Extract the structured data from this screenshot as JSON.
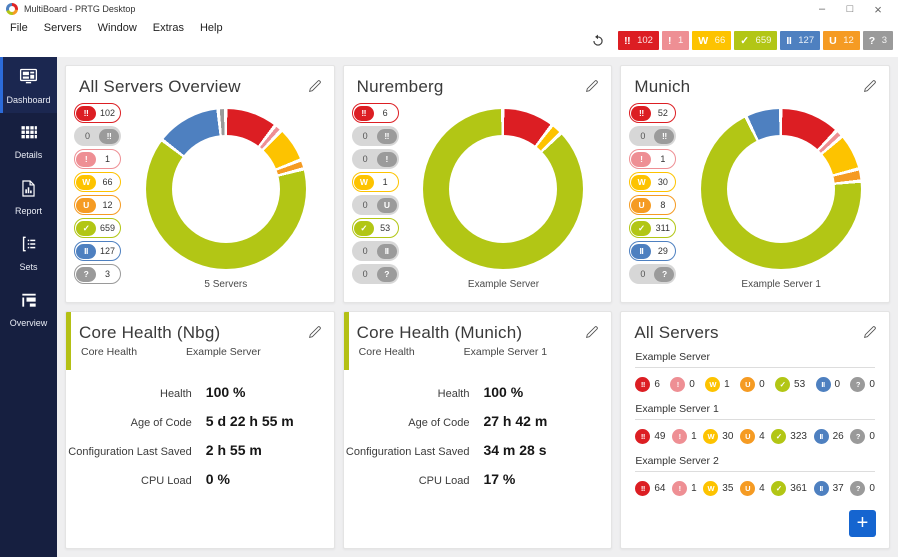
{
  "window": {
    "title": "MultiBoard - PRTG Desktop",
    "controls": {
      "minimize": "–",
      "maximize": "□",
      "close": "×"
    }
  },
  "menu": {
    "items": [
      "File",
      "Servers",
      "Window",
      "Extras",
      "Help"
    ]
  },
  "colors": {
    "down": "#dc1e23",
    "down_ack": "#9a9a9a",
    "down_partial": "#ee8f94",
    "warning": "#fdc300",
    "unusual": "#f59b23",
    "up": "#b2c615",
    "paused": "#4e80c0",
    "unknown": "#9a9a9a",
    "accent_blue": "#2c6bd9",
    "plus_button": "#1565d0",
    "panel_accent": "#b4c014"
  },
  "header": {
    "badges": [
      {
        "key": "down",
        "icon": "!!",
        "count": "102"
      },
      {
        "key": "down_partial",
        "icon": "!",
        "count": "1"
      },
      {
        "key": "warning",
        "icon": "W",
        "count": "66"
      },
      {
        "key": "up",
        "icon": "✓",
        "count": "659"
      },
      {
        "key": "paused",
        "icon": "II",
        "count": "127"
      },
      {
        "key": "unusual",
        "icon": "U",
        "count": "12"
      },
      {
        "key": "unknown",
        "icon": "?",
        "count": "3"
      }
    ]
  },
  "sidebar": {
    "items": [
      {
        "key": "dashboard",
        "label": "Dashboard",
        "active": true
      },
      {
        "key": "details",
        "label": "Details",
        "active": false
      },
      {
        "key": "report",
        "label": "Report",
        "active": false
      },
      {
        "key": "sets",
        "label": "Sets",
        "active": false
      },
      {
        "key": "overview",
        "label": "Overview",
        "active": false
      }
    ]
  },
  "overview_panels": [
    {
      "title": "All Servers Overview",
      "caption": "5 Servers",
      "pills": [
        {
          "key": "down",
          "icon": "!!",
          "count": "102",
          "active": true
        },
        {
          "key": "down_ack",
          "icon": "!!",
          "count": "0",
          "active": false
        },
        {
          "key": "down_partial",
          "icon": "!",
          "count": "1",
          "active": true
        },
        {
          "key": "warning",
          "icon": "W",
          "count": "66",
          "active": true
        },
        {
          "key": "unusual",
          "icon": "U",
          "count": "12",
          "active": true
        },
        {
          "key": "up",
          "icon": "✓",
          "count": "659",
          "active": true
        },
        {
          "key": "paused",
          "icon": "II",
          "count": "127",
          "active": true
        },
        {
          "key": "unknown",
          "icon": "?",
          "count": "3",
          "active": true
        }
      ],
      "donut": {
        "type": "donut",
        "segments": [
          {
            "key": "down",
            "value": 102
          },
          {
            "key": "down_partial",
            "value": 1
          },
          {
            "key": "warning",
            "value": 66
          },
          {
            "key": "unusual",
            "value": 12
          },
          {
            "key": "up",
            "value": 659
          },
          {
            "key": "paused",
            "value": 127
          },
          {
            "key": "unknown",
            "value": 3
          }
        ]
      }
    },
    {
      "title": "Nuremberg",
      "caption": "Example Server",
      "pills": [
        {
          "key": "down",
          "icon": "!!",
          "count": "6",
          "active": true
        },
        {
          "key": "down_ack",
          "icon": "!!",
          "count": "0",
          "active": false
        },
        {
          "key": "down_partial",
          "icon": "!",
          "count": "0",
          "active": false
        },
        {
          "key": "warning",
          "icon": "W",
          "count": "1",
          "active": true
        },
        {
          "key": "unusual",
          "icon": "U",
          "count": "0",
          "active": false
        },
        {
          "key": "up",
          "icon": "✓",
          "count": "53",
          "active": true
        },
        {
          "key": "paused",
          "icon": "II",
          "count": "0",
          "active": false
        },
        {
          "key": "unknown",
          "icon": "?",
          "count": "0",
          "active": false
        }
      ],
      "donut": {
        "type": "donut",
        "segments": [
          {
            "key": "down",
            "value": 6
          },
          {
            "key": "warning",
            "value": 1
          },
          {
            "key": "up",
            "value": 53
          }
        ]
      }
    },
    {
      "title": "Munich",
      "caption": "Example Server 1",
      "pills": [
        {
          "key": "down",
          "icon": "!!",
          "count": "52",
          "active": true
        },
        {
          "key": "down_ack",
          "icon": "!!",
          "count": "0",
          "active": false
        },
        {
          "key": "down_partial",
          "icon": "!",
          "count": "1",
          "active": true
        },
        {
          "key": "warning",
          "icon": "W",
          "count": "30",
          "active": true
        },
        {
          "key": "unusual",
          "icon": "U",
          "count": "8",
          "active": true
        },
        {
          "key": "up",
          "icon": "✓",
          "count": "311",
          "active": true
        },
        {
          "key": "paused",
          "icon": "II",
          "count": "29",
          "active": true
        },
        {
          "key": "unknown",
          "icon": "?",
          "count": "0",
          "active": false
        }
      ],
      "donut": {
        "type": "donut",
        "segments": [
          {
            "key": "down",
            "value": 52
          },
          {
            "key": "down_partial",
            "value": 1
          },
          {
            "key": "warning",
            "value": 30
          },
          {
            "key": "unusual",
            "value": 8
          },
          {
            "key": "up",
            "value": 311
          },
          {
            "key": "paused",
            "value": 29
          }
        ]
      }
    }
  ],
  "core_panels": [
    {
      "title": "Core Health (Nbg)",
      "subtitle_left": "Core Health",
      "subtitle_right": "Example Server",
      "rows": [
        {
          "label": "Health",
          "value": "100 %"
        },
        {
          "label": "Age of Code",
          "value": "5 d 22 h 55 m"
        },
        {
          "label": "Configuration Last Saved",
          "value": "2 h 55 m"
        },
        {
          "label": "CPU Load",
          "value": "0 %"
        }
      ]
    },
    {
      "title": "Core Health (Munich)",
      "subtitle_left": "Core Health",
      "subtitle_right": "Example Server 1",
      "rows": [
        {
          "label": "Health",
          "value": "100 %"
        },
        {
          "label": "Age of Code",
          "value": "27 h 42 m"
        },
        {
          "label": "Configuration Last Saved",
          "value": "34 m 28 s"
        },
        {
          "label": "CPU Load",
          "value": "17 %"
        }
      ]
    }
  ],
  "servers_panel": {
    "title": "All Servers",
    "groups": [
      {
        "name": "Example Server",
        "badges": [
          {
            "key": "down",
            "icon": "!!",
            "count": "6"
          },
          {
            "key": "down_partial",
            "icon": "!",
            "count": "0"
          },
          {
            "key": "warning",
            "icon": "W",
            "count": "1"
          },
          {
            "key": "unusual",
            "icon": "U",
            "count": "0"
          },
          {
            "key": "up",
            "icon": "✓",
            "count": "53"
          },
          {
            "key": "paused",
            "icon": "II",
            "count": "0"
          },
          {
            "key": "unknown",
            "icon": "?",
            "count": "0"
          }
        ]
      },
      {
        "name": "Example Server 1",
        "badges": [
          {
            "key": "down",
            "icon": "!!",
            "count": "49"
          },
          {
            "key": "down_partial",
            "icon": "!",
            "count": "1"
          },
          {
            "key": "warning",
            "icon": "W",
            "count": "30"
          },
          {
            "key": "unusual",
            "icon": "U",
            "count": "4"
          },
          {
            "key": "up",
            "icon": "✓",
            "count": "323"
          },
          {
            "key": "paused",
            "icon": "II",
            "count": "26"
          },
          {
            "key": "unknown",
            "icon": "?",
            "count": "0"
          }
        ]
      },
      {
        "name": "Example Server 2",
        "badges": [
          {
            "key": "down",
            "icon": "!!",
            "count": "64"
          },
          {
            "key": "down_partial",
            "icon": "!",
            "count": "1"
          },
          {
            "key": "warning",
            "icon": "W",
            "count": "35"
          },
          {
            "key": "unusual",
            "icon": "U",
            "count": "4"
          },
          {
            "key": "up",
            "icon": "✓",
            "count": "361"
          },
          {
            "key": "paused",
            "icon": "II",
            "count": "37"
          },
          {
            "key": "unknown",
            "icon": "?",
            "count": "0"
          }
        ]
      }
    ],
    "add_button_label": "+"
  }
}
